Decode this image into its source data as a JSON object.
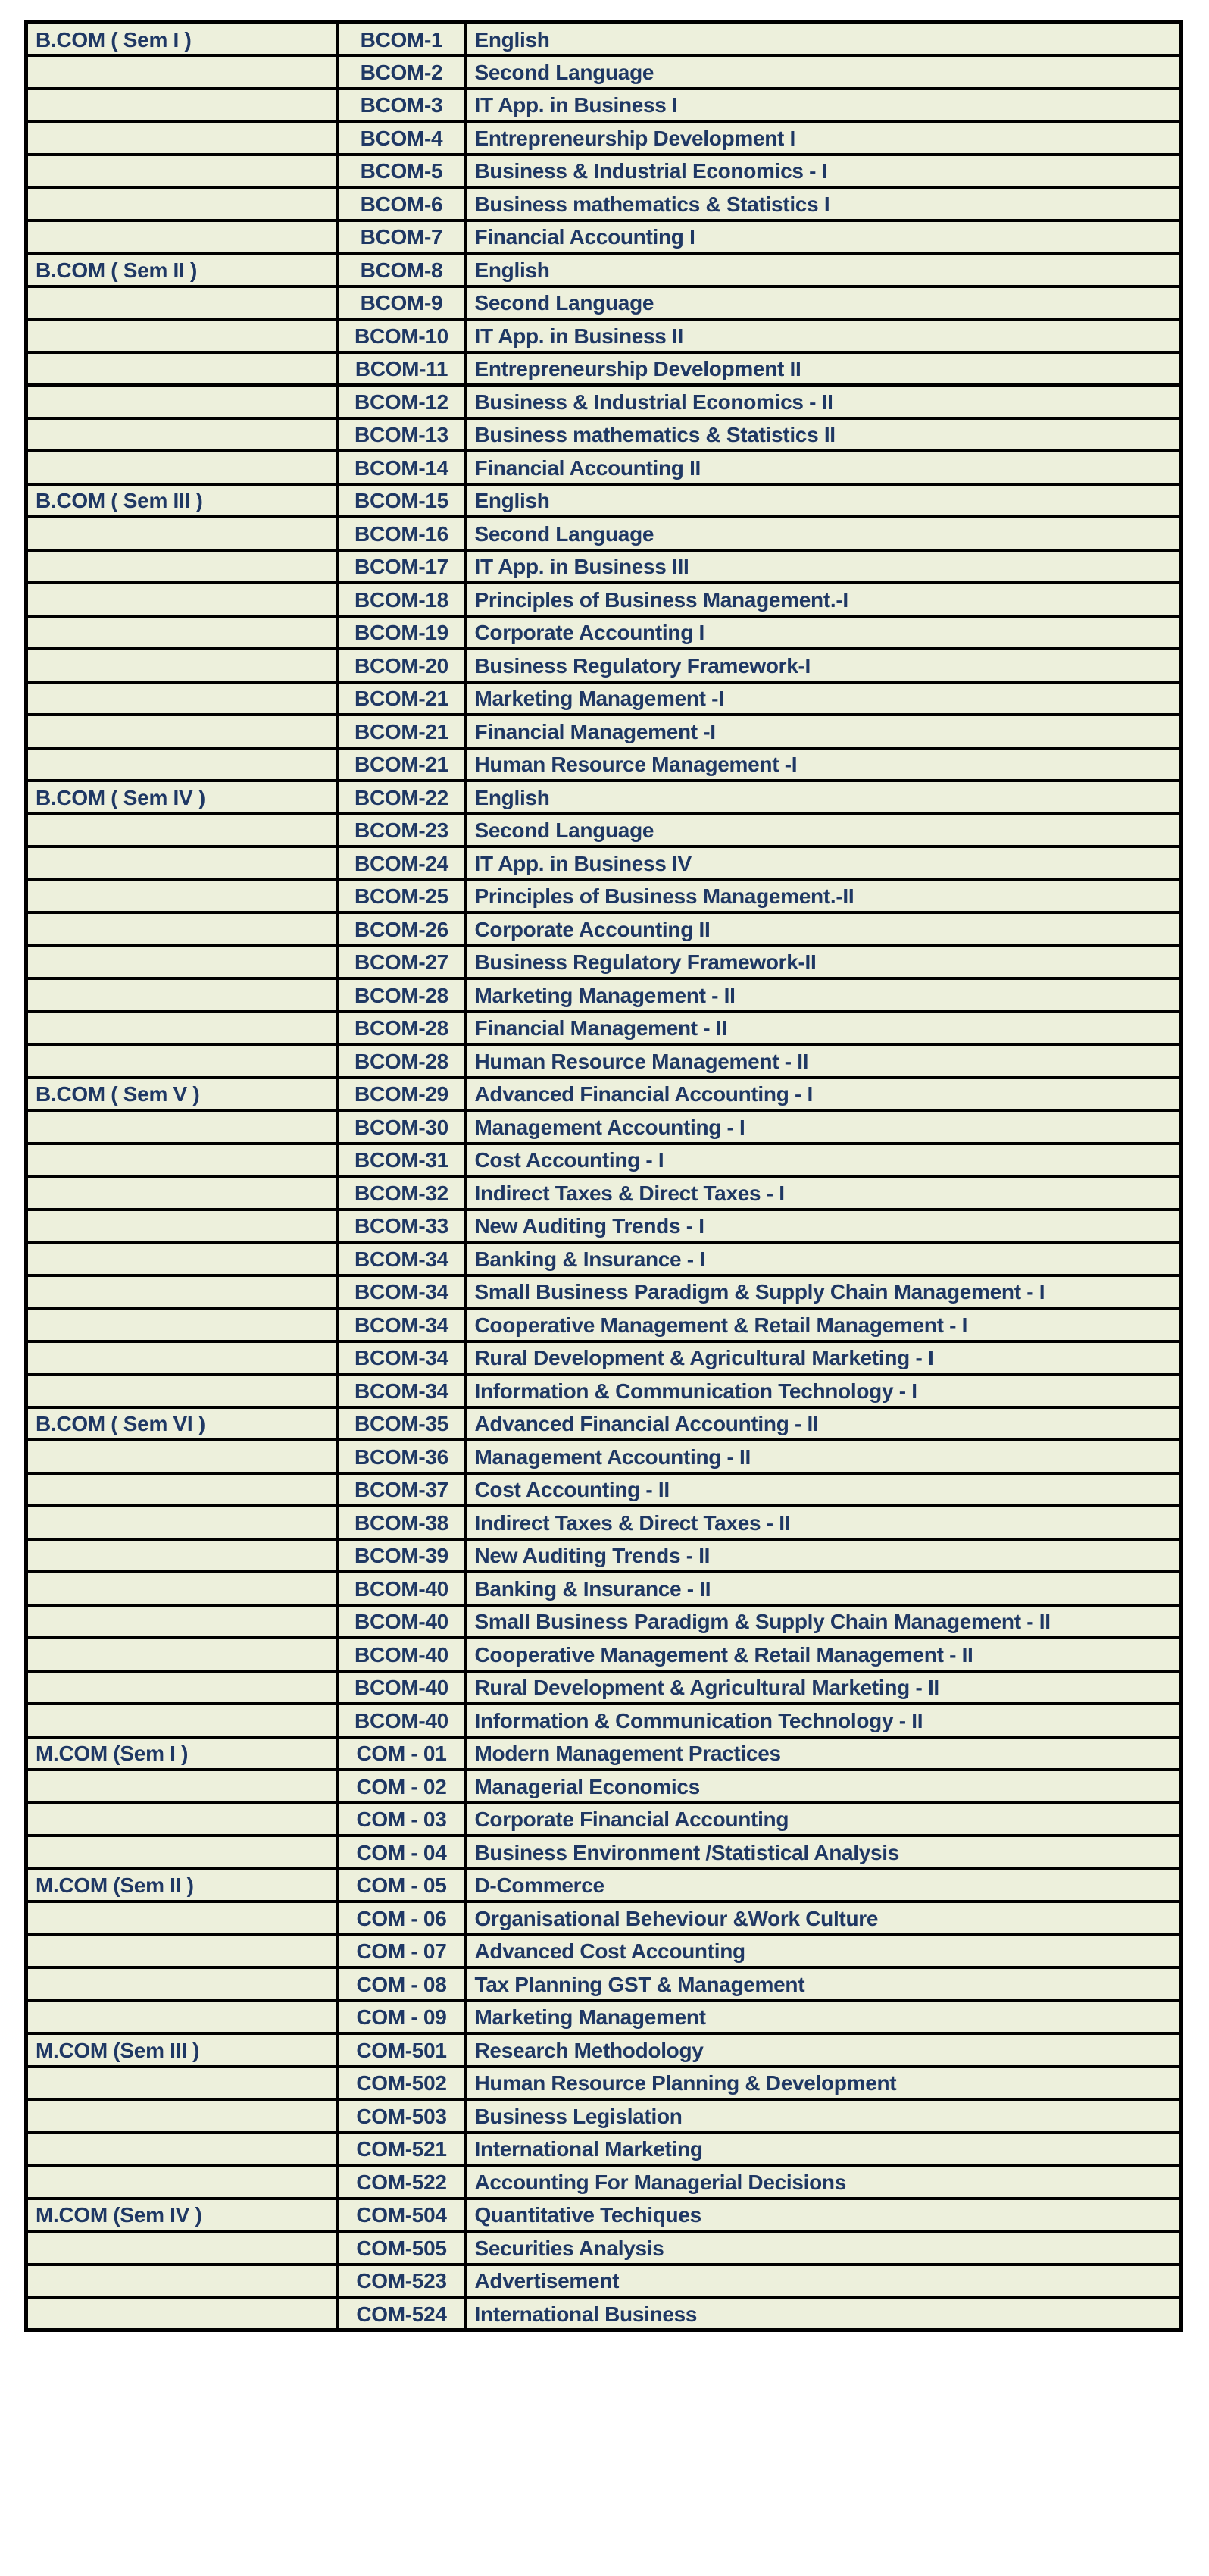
{
  "table": {
    "colors": {
      "page_background": "#ffffff",
      "cell_background": "#edf0dc",
      "text": "#1f3864",
      "border": "#000000"
    },
    "columns": [
      "semester",
      "code",
      "subject"
    ],
    "rows": [
      {
        "semester": "B.COM ( Sem I )",
        "code": "BCOM-1",
        "subject": "English"
      },
      {
        "semester": "",
        "code": "BCOM-2",
        "subject": "Second Language"
      },
      {
        "semester": "",
        "code": "BCOM-3",
        "subject": "IT App. in Business I"
      },
      {
        "semester": "",
        "code": "BCOM-4",
        "subject": "Entrepreneurship Development I"
      },
      {
        "semester": "",
        "code": "BCOM-5",
        "subject": "Business & Industrial Economics - I"
      },
      {
        "semester": "",
        "code": "BCOM-6",
        "subject": "Business mathematics & Statistics I"
      },
      {
        "semester": "",
        "code": "BCOM-7",
        "subject": "Financial Accounting I"
      },
      {
        "semester": "B.COM ( Sem II )",
        "code": "BCOM-8",
        "subject": "English"
      },
      {
        "semester": "",
        "code": "BCOM-9",
        "subject": "Second Language"
      },
      {
        "semester": "",
        "code": "BCOM-10",
        "subject": "IT App. in Business II"
      },
      {
        "semester": "",
        "code": "BCOM-11",
        "subject": "Entrepreneurship Development II"
      },
      {
        "semester": "",
        "code": "BCOM-12",
        "subject": "Business & Industrial Economics - II"
      },
      {
        "semester": "",
        "code": "BCOM-13",
        "subject": "Business mathematics & Statistics II"
      },
      {
        "semester": "",
        "code": "BCOM-14",
        "subject": "Financial Accounting II"
      },
      {
        "semester": "B.COM ( Sem III )",
        "code": "BCOM-15",
        "subject": "English"
      },
      {
        "semester": "",
        "code": "BCOM-16",
        "subject": "Second Language"
      },
      {
        "semester": "",
        "code": "BCOM-17",
        "subject": "IT App. in Business III"
      },
      {
        "semester": "",
        "code": "BCOM-18",
        "subject": "Principles of Business Management.-I"
      },
      {
        "semester": "",
        "code": "BCOM-19",
        "subject": "Corporate Accounting I"
      },
      {
        "semester": "",
        "code": "BCOM-20",
        "subject": "Business Regulatory Framework-I"
      },
      {
        "semester": "",
        "code": "BCOM-21",
        "subject": "Marketing Management -I"
      },
      {
        "semester": "",
        "code": "BCOM-21",
        "subject": "Financial Management -I"
      },
      {
        "semester": "",
        "code": "BCOM-21",
        "subject": "Human Resource Management -I"
      },
      {
        "semester": "B.COM ( Sem IV )",
        "code": "BCOM-22",
        "subject": "English"
      },
      {
        "semester": "",
        "code": "BCOM-23",
        "subject": "Second Language"
      },
      {
        "semester": "",
        "code": "BCOM-24",
        "subject": "IT App. in Business IV"
      },
      {
        "semester": "",
        "code": "BCOM-25",
        "subject": "Principles of Business Management.-II"
      },
      {
        "semester": "",
        "code": "BCOM-26",
        "subject": "Corporate Accounting II"
      },
      {
        "semester": "",
        "code": "BCOM-27",
        "subject": "Business Regulatory Framework-II"
      },
      {
        "semester": "",
        "code": "BCOM-28",
        "subject": "Marketing Management - II"
      },
      {
        "semester": "",
        "code": "BCOM-28",
        "subject": "Financial Management - II"
      },
      {
        "semester": "",
        "code": "BCOM-28",
        "subject": "Human Resource Management - II"
      },
      {
        "semester": "B.COM ( Sem V )",
        "code": "BCOM-29",
        "subject": "Advanced Financial Accounting - I"
      },
      {
        "semester": "",
        "code": "BCOM-30",
        "subject": "Management Accounting - I"
      },
      {
        "semester": "",
        "code": "BCOM-31",
        "subject": "Cost Accounting - I"
      },
      {
        "semester": "",
        "code": "BCOM-32",
        "subject": "Indirect Taxes & Direct Taxes - I"
      },
      {
        "semester": "",
        "code": "BCOM-33",
        "subject": "New Auditing Trends - I"
      },
      {
        "semester": "",
        "code": "BCOM-34",
        "subject": "Banking & Insurance - I"
      },
      {
        "semester": "",
        "code": "BCOM-34",
        "subject": "Small Business Paradigm & Supply Chain Management - I"
      },
      {
        "semester": "",
        "code": "BCOM-34",
        "subject": "Cooperative Management & Retail Management - I"
      },
      {
        "semester": "",
        "code": "BCOM-34",
        "subject": "Rural Development & Agricultural Marketing - I"
      },
      {
        "semester": "",
        "code": "BCOM-34",
        "subject": "Information & Communication Technology - I"
      },
      {
        "semester": "B.COM ( Sem VI )",
        "code": "BCOM-35",
        "subject": "Advanced Financial Accounting - II"
      },
      {
        "semester": "",
        "code": "BCOM-36",
        "subject": "Management Accounting - II"
      },
      {
        "semester": "",
        "code": "BCOM-37",
        "subject": "Cost Accounting - II"
      },
      {
        "semester": "",
        "code": "BCOM-38",
        "subject": "Indirect Taxes & Direct Taxes - II"
      },
      {
        "semester": "",
        "code": "BCOM-39",
        "subject": "New Auditing Trends - II"
      },
      {
        "semester": "",
        "code": "BCOM-40",
        "subject": "Banking & Insurance - II"
      },
      {
        "semester": "",
        "code": "BCOM-40",
        "subject": "Small Business Paradigm & Supply Chain Management - II"
      },
      {
        "semester": "",
        "code": "BCOM-40",
        "subject": "Cooperative Management & Retail Management - II"
      },
      {
        "semester": "",
        "code": "BCOM-40",
        "subject": "Rural Development & Agricultural Marketing - II"
      },
      {
        "semester": "",
        "code": "BCOM-40",
        "subject": "Information & Communication Technology - II"
      },
      {
        "semester": "M.COM (Sem I )",
        "code": "COM - 01",
        "subject": "Modern Management Practices"
      },
      {
        "semester": "",
        "code": "COM - 02",
        "subject": "Managerial Economics"
      },
      {
        "semester": "",
        "code": "COM - 03",
        "subject": "Corporate Financial Accounting"
      },
      {
        "semester": "",
        "code": "COM - 04",
        "subject": "Business Environment /Statistical Analysis"
      },
      {
        "semester": "M.COM (Sem II )",
        "code": "COM - 05",
        "subject": "D-Commerce"
      },
      {
        "semester": "",
        "code": "COM - 06",
        "subject": "Organisational Beheviour &Work Culture"
      },
      {
        "semester": "",
        "code": "COM - 07",
        "subject": "Advanced Cost Accounting"
      },
      {
        "semester": "",
        "code": "COM - 08",
        "subject": "Tax Planning GST & Management"
      },
      {
        "semester": "",
        "code": "COM - 09",
        "subject": "Marketing Management"
      },
      {
        "semester": "M.COM (Sem III )",
        "code": "COM-501",
        "subject": "Research Methodology"
      },
      {
        "semester": "",
        "code": "COM-502",
        "subject": "Human Resource Planning & Development"
      },
      {
        "semester": "",
        "code": "COM-503",
        "subject": "Business Legislation"
      },
      {
        "semester": "",
        "code": "COM-521",
        "subject": "International Marketing"
      },
      {
        "semester": "",
        "code": "COM-522",
        "subject": "Accounting For Managerial Decisions"
      },
      {
        "semester": "M.COM (Sem IV )",
        "code": "COM-504",
        "subject": "Quantitative Techiques"
      },
      {
        "semester": "",
        "code": "COM-505",
        "subject": "Securities Analysis"
      },
      {
        "semester": "",
        "code": "COM-523",
        "subject": "Advertisement"
      },
      {
        "semester": "",
        "code": "COM-524",
        "subject": "International Business"
      }
    ]
  }
}
